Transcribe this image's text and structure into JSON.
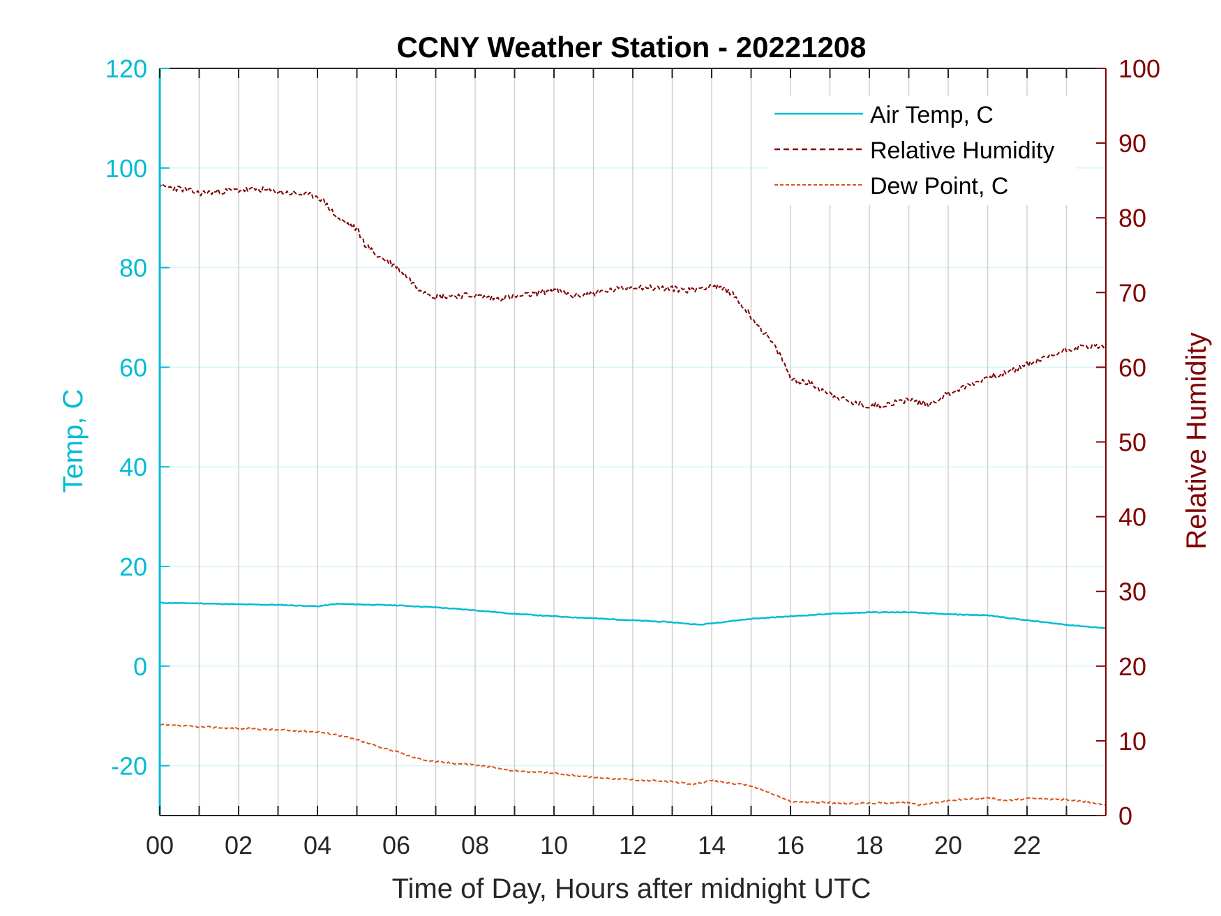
{
  "chart_data": {
    "type": "line",
    "title": "CCNY Weather Station - 20221208",
    "xlabel": "Time of Day, Hours after midnight UTC",
    "ylabel_left": "Temp, C",
    "ylabel_right": "Relative Humidity",
    "xlim": [
      0,
      24
    ],
    "ylim_left": [
      -30,
      120
    ],
    "ylim_right": [
      0,
      100
    ],
    "x_ticks": [
      0,
      2,
      4,
      6,
      8,
      10,
      12,
      14,
      16,
      18,
      20,
      22
    ],
    "x_tick_labels": [
      "00",
      "02",
      "04",
      "06",
      "08",
      "10",
      "12",
      "14",
      "16",
      "18",
      "20",
      "22"
    ],
    "y_left_ticks": [
      -20,
      0,
      20,
      40,
      60,
      80,
      100,
      120
    ],
    "y_left_tick_labels": [
      "-20",
      "0",
      "20",
      "40",
      "60",
      "80",
      "100",
      "120"
    ],
    "y_right_ticks": [
      0,
      10,
      20,
      30,
      40,
      50,
      60,
      70,
      80,
      90,
      100
    ],
    "y_right_tick_labels": [
      "0",
      "10",
      "20",
      "30",
      "40",
      "50",
      "60",
      "70",
      "80",
      "90",
      "100"
    ],
    "grid": "on",
    "legend_position": "top-right",
    "colors": {
      "air_temp": "#00bcd4",
      "humidity": "#800000",
      "dew_point": "#d95319",
      "grid_vertical": "#d0d0d0",
      "grid_horizontal": "#d6f4f8",
      "axis_left": "#00bcd4",
      "axis_right": "#800000"
    },
    "series": [
      {
        "name": "Air Temp, C",
        "axis": "left",
        "style": "solid",
        "x": [
          0,
          1,
          2,
          3,
          4,
          4.5,
          5,
          6,
          7,
          8,
          9,
          10,
          11,
          12,
          13,
          13.7,
          14,
          15,
          16,
          17,
          18,
          19,
          20,
          21,
          22,
          23,
          24
        ],
        "y": [
          12.7,
          12.6,
          12.4,
          12.3,
          12.0,
          12.5,
          12.4,
          12.2,
          11.8,
          11.2,
          10.5,
          10.0,
          9.6,
          9.2,
          8.8,
          8.3,
          8.6,
          9.5,
          10.0,
          10.5,
          10.8,
          10.8,
          10.4,
          10.2,
          9.2,
          8.3,
          7.6
        ]
      },
      {
        "name": "Relative Humidity",
        "axis": "right",
        "style": "dashed",
        "x": [
          0,
          0.5,
          1,
          2,
          2.5,
          3,
          3.5,
          4,
          4.2,
          4.5,
          5,
          5.2,
          5.5,
          6,
          6.3,
          6.5,
          7,
          7.5,
          8,
          8.5,
          9,
          9.5,
          10,
          10.5,
          11,
          12,
          13,
          13.5,
          14,
          14.5,
          15,
          15.5,
          15.8,
          16,
          16.5,
          17,
          17.5,
          18,
          18.5,
          19,
          19.5,
          20,
          20.5,
          21,
          21.5,
          22,
          22.5,
          23,
          23.5,
          24
        ],
        "y": [
          84.2,
          83.9,
          83.3,
          83.7,
          83.8,
          83.5,
          83.2,
          82.9,
          82.0,
          80.0,
          78.5,
          76.5,
          75.0,
          73.5,
          72.0,
          70.8,
          69.4,
          69.6,
          69.6,
          69.2,
          69.4,
          69.8,
          70.4,
          69.5,
          69.9,
          70.8,
          70.5,
          70.3,
          71.0,
          70.0,
          66.8,
          63.5,
          61.0,
          58.5,
          57.8,
          56.5,
          55.3,
          54.8,
          55.1,
          55.7,
          55.0,
          56.5,
          57.5,
          58.7,
          59.2,
          60.4,
          61.3,
          62.4,
          62.8,
          62.8
        ]
      },
      {
        "name": "Dew Point, C",
        "axis": "left",
        "style": "dashed",
        "x": [
          0,
          1,
          2,
          3,
          4,
          4.5,
          5,
          5.5,
          6,
          6.5,
          7,
          8,
          9,
          10,
          11,
          12,
          13,
          13.5,
          14,
          15,
          15.5,
          16,
          17,
          17.5,
          18,
          19,
          19.3,
          20,
          21,
          21.5,
          22,
          23,
          24
        ],
        "y": [
          -11.8,
          -12.2,
          -12.5,
          -12.8,
          -13.2,
          -13.8,
          -14.8,
          -16.0,
          -17.2,
          -18.5,
          -19.2,
          -19.8,
          -21.0,
          -21.5,
          -22.3,
          -22.8,
          -23.2,
          -23.8,
          -23.0,
          -24.0,
          -25.5,
          -27.2,
          -27.4,
          -27.6,
          -27.5,
          -27.4,
          -27.9,
          -27.0,
          -26.4,
          -27.0,
          -26.6,
          -26.8,
          -27.8
        ]
      }
    ]
  }
}
